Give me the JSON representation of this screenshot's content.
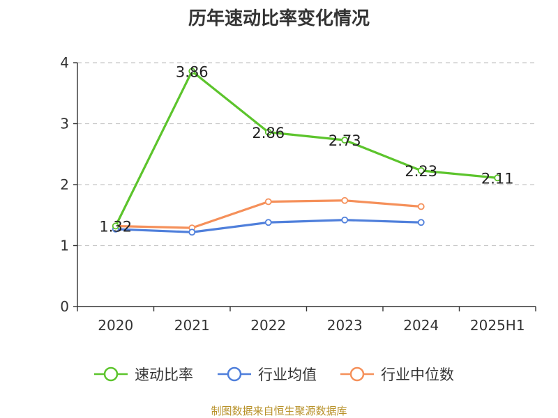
{
  "chart_data": {
    "type": "line",
    "title": "历年速动比率变化情况",
    "categories": [
      "2020",
      "2021",
      "2022",
      "2023",
      "2024",
      "2025H1"
    ],
    "ylim": [
      0,
      4
    ],
    "yticks": [
      0,
      1,
      2,
      3,
      4
    ],
    "grid": true,
    "legend_position": "bottom",
    "series": [
      {
        "name": "速动比率",
        "color": "#5cc42c",
        "values": [
          1.32,
          3.86,
          2.86,
          2.73,
          2.23,
          2.11
        ],
        "labels": [
          "1.32",
          "3.86",
          "2.86",
          "2.73",
          "2.23",
          "2.11"
        ]
      },
      {
        "name": "行业均值",
        "color": "#4f7fdb",
        "values": [
          1.27,
          1.22,
          1.38,
          1.42,
          1.38,
          null
        ]
      },
      {
        "name": "行业中位数",
        "color": "#f5905a",
        "values": [
          1.32,
          1.29,
          1.72,
          1.74,
          1.64,
          null
        ]
      }
    ]
  },
  "source": "制图数据来自恒生聚源数据库"
}
